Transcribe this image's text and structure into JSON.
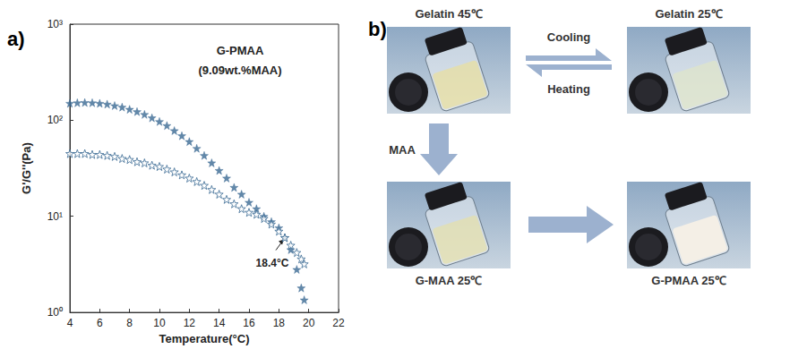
{
  "chart_data": {
    "type": "scatter",
    "panel_label": "a)",
    "title": "G-PMAA",
    "subtitle": "(9.09wt.%MAA)",
    "x_label": "Temperature(°C)",
    "y_label": "G'/G''(Pa)",
    "log": "y",
    "grid": false,
    "xlim": [
      4,
      22
    ],
    "xticks": [
      4,
      6,
      8,
      10,
      12,
      14,
      16,
      18,
      20,
      22
    ],
    "ylim": [
      1,
      1000
    ],
    "yticks": [
      {
        "value": 1,
        "label": "10⁰"
      },
      {
        "value": 10,
        "label": "10¹"
      },
      {
        "value": 100,
        "label": "10²"
      },
      {
        "value": 1000,
        "label": "10³"
      }
    ],
    "series": [
      {
        "color": "#3b6a94",
        "marker": "star-filled",
        "x": [
          4,
          4.5,
          5,
          5.5,
          6,
          6.5,
          7,
          7.5,
          8,
          8.5,
          9,
          9.5,
          10,
          10.5,
          11,
          11.5,
          12,
          12.5,
          13,
          13.5,
          14,
          14.5,
          15,
          15.5,
          16,
          16.5,
          17,
          17.5,
          18,
          18.4,
          18.8,
          19.2,
          19.5,
          19.7
        ],
        "values": [
          150,
          152,
          153,
          152,
          150,
          147,
          142,
          137,
          130,
          123,
          115,
          106,
          97,
          88,
          78,
          69,
          60,
          51,
          43,
          36,
          30,
          25,
          20,
          17,
          14,
          12,
          10,
          8.8,
          7.6,
          6,
          4.5,
          2.8,
          1.8,
          1.35
        ]
      },
      {
        "color": "#3b6a94",
        "marker": "star-open",
        "x": [
          4,
          4.5,
          5,
          5.5,
          6,
          6.5,
          7,
          7.5,
          8,
          8.5,
          9,
          9.5,
          10,
          10.5,
          11,
          11.5,
          12,
          12.5,
          13,
          13.5,
          14,
          14.5,
          15,
          15.5,
          16,
          16.5,
          17,
          17.5,
          18,
          18.4,
          18.8,
          19.2,
          19.5,
          19.7
        ],
        "values": [
          45,
          45,
          45,
          44,
          44,
          43,
          42,
          40,
          39,
          37,
          36,
          34,
          33,
          31,
          29,
          27,
          25,
          23,
          21,
          19,
          17,
          15,
          13.5,
          12,
          11,
          10.5,
          9.5,
          8.3,
          7,
          6,
          5,
          4.2,
          3.6,
          3.2
        ]
      }
    ],
    "annotations": [
      {
        "text": "18.4°C",
        "x": 18.4,
        "y": 6
      }
    ]
  },
  "panel_b": {
    "label": "b)",
    "photos": [
      {
        "caption": "Gelatin 45℃"
      },
      {
        "caption": "Gelatin 25℃"
      },
      {
        "caption": "G-MAA 25℃"
      },
      {
        "caption": "G-PMAA 25℃"
      }
    ],
    "arrows": {
      "forward": "Cooling",
      "backward": "Heating",
      "down": "MAA"
    }
  }
}
